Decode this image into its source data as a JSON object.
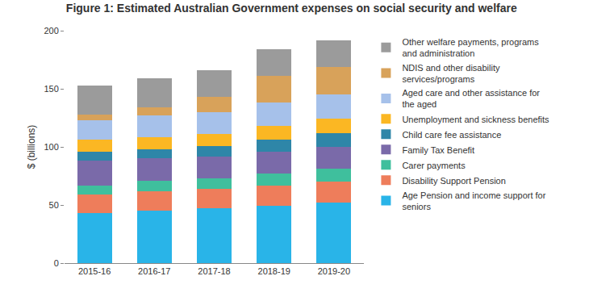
{
  "chart_data": {
    "type": "bar",
    "title": "Figure 1: Estimated Australian Government expenses on social security and welfare",
    "y_label": "$ (billions)",
    "categories": [
      "2015-16",
      "2016-17",
      "2017-18",
      "2018-19",
      "2019-20"
    ],
    "stacked": true,
    "grid": false,
    "legend": "right",
    "ylim": [
      0,
      200
    ],
    "yticks": [
      0,
      50,
      100,
      150,
      200
    ],
    "series": [
      {
        "name": "Age Pension and income support for seniors",
        "color": "#29b4e8",
        "values": [
          43,
          45,
          47,
          49,
          52
        ]
      },
      {
        "name": "Disability Support Pension",
        "color": "#ee7d5b",
        "values": [
          16,
          17,
          17,
          18,
          18
        ]
      },
      {
        "name": "Carer payments",
        "color": "#3fbf9d",
        "values": [
          8,
          9,
          9,
          10,
          11
        ]
      },
      {
        "name": "Family Tax Benefit",
        "color": "#7a6aa9",
        "values": [
          21,
          19,
          19,
          19,
          19
        ]
      },
      {
        "name": "Child care fee assistance",
        "color": "#2e86a8",
        "values": [
          8,
          8,
          9,
          10,
          12
        ]
      },
      {
        "name": "Unemployment and sickness benefits",
        "color": "#fbb723",
        "values": [
          10,
          10,
          10,
          12,
          12
        ]
      },
      {
        "name": "Aged care and other assistance for the aged",
        "color": "#a6c1ea",
        "values": [
          17,
          19,
          19,
          20,
          21
        ]
      },
      {
        "name": "NDIS and other disability services/programs",
        "color": "#d8a25a",
        "values": [
          5,
          7,
          13,
          23,
          24
        ]
      },
      {
        "name": "Other welfare payments, programs and administration",
        "color": "#9b9b9b",
        "values": [
          25,
          25,
          23,
          23,
          23
        ]
      }
    ]
  }
}
